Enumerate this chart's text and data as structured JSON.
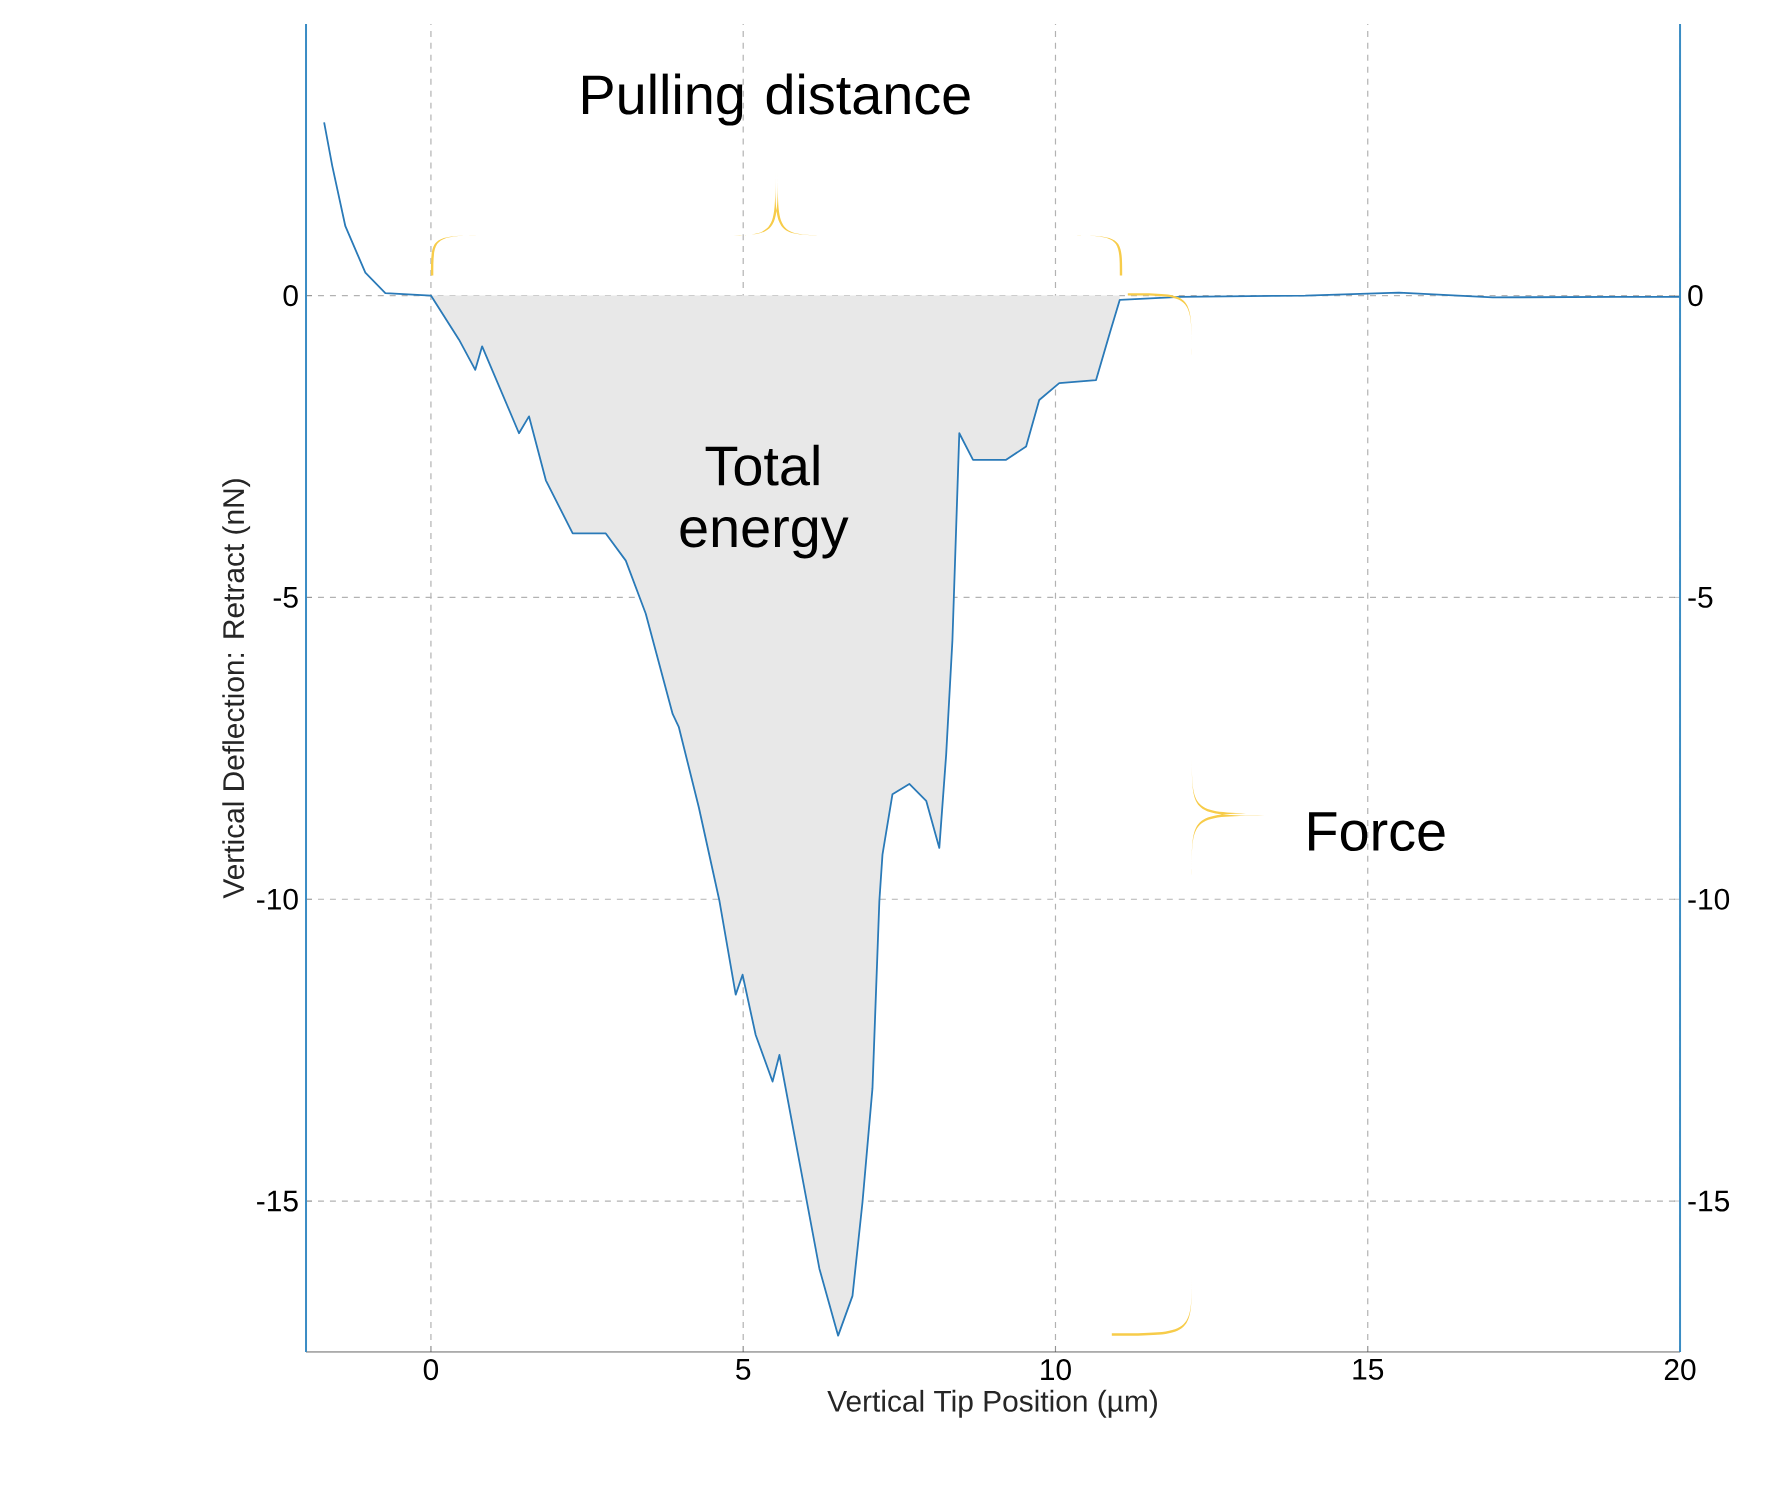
{
  "chart_data": {
    "type": "line",
    "xlabel": "Vertical Tip Position (µm)",
    "ylabel": "Vertical Deflection: Retract (nN)",
    "xlim": [
      -2,
      20
    ],
    "ylim": [
      -17.5,
      4.5
    ],
    "xticks": [
      0,
      5,
      10,
      15,
      20
    ],
    "yticks": [
      -15,
      -10,
      -5,
      0
    ],
    "y2lim": [
      -17.5,
      4.5
    ],
    "y2ticks": [
      -15,
      -10,
      -5,
      0
    ],
    "grid": true,
    "annotations": [
      "Pulling distance",
      "Total energy",
      "Force"
    ],
    "series": [
      {
        "type": "area",
        "color": "#e8e8e8",
        "x": [
          0,
          0.45,
          0.71,
          0.82,
          1.41,
          1.57,
          1.84,
          2.27,
          2.8,
          3.12,
          3.44,
          3.87,
          3.97,
          4.29,
          4.62,
          4.88,
          4.99,
          5.2,
          5.47,
          5.58,
          5.9,
          6.22,
          6.52,
          6.75,
          6.91,
          7.07,
          7.18,
          7.23,
          7.39,
          7.66,
          7.93,
          8.14,
          8.25,
          8.35,
          8.46,
          8.68,
          9.21,
          9.53,
          9.74,
          10.06,
          10.65,
          10.87,
          11.03
        ],
        "values": [
          0,
          -0.73,
          -1.23,
          -0.84,
          -2.28,
          -2.0,
          -3.06,
          -3.94,
          -3.94,
          -4.39,
          -5.27,
          -6.93,
          -7.15,
          -8.48,
          -10.03,
          -11.58,
          -11.25,
          -12.25,
          -13.02,
          -12.58,
          -14.35,
          -16.12,
          -17.23,
          -16.57,
          -15.02,
          -13.13,
          -10.03,
          -9.26,
          -8.26,
          -8.09,
          -8.37,
          -9.15,
          -7.6,
          -5.71,
          -2.28,
          -2.72,
          -2.72,
          -2.5,
          -1.73,
          -1.45,
          -1.4,
          -0.62,
          -0.07
        ]
      },
      {
        "color": "#2a7ab8",
        "x": [
          -1.71,
          -1.58,
          -1.37,
          -1.05,
          -0.73,
          0,
          0.45,
          0.71,
          0.82,
          1.41,
          1.57,
          1.84,
          2.27,
          2.8,
          3.12,
          3.44,
          3.87,
          3.97,
          4.29,
          4.62,
          4.88,
          4.99,
          5.2,
          5.47,
          5.58,
          5.9,
          6.22,
          6.52,
          6.75,
          6.91,
          7.07,
          7.18,
          7.23,
          7.39,
          7.66,
          7.93,
          8.14,
          8.25,
          8.35,
          8.46,
          8.68,
          9.21,
          9.53,
          9.74,
          10.06,
          10.65,
          10.87,
          11.03,
          12,
          14,
          15.5,
          17,
          19,
          20
        ],
        "values": [
          2.87,
          2.15,
          1.15,
          0.38,
          0.04,
          0,
          -0.73,
          -1.23,
          -0.84,
          -2.28,
          -2.0,
          -3.06,
          -3.94,
          -3.94,
          -4.39,
          -5.27,
          -6.93,
          -7.15,
          -8.48,
          -10.03,
          -11.58,
          -11.25,
          -12.25,
          -13.02,
          -12.58,
          -14.35,
          -16.12,
          -17.23,
          -16.57,
          -15.02,
          -13.13,
          -10.03,
          -9.26,
          -8.26,
          -8.09,
          -8.37,
          -9.15,
          -7.6,
          -5.71,
          -2.28,
          -2.72,
          -2.72,
          -2.5,
          -1.73,
          -1.45,
          -1.4,
          -0.62,
          -0.07,
          -0.02,
          0,
          0.05,
          -0.03,
          -0.02,
          -0.02
        ]
      }
    ]
  }
}
